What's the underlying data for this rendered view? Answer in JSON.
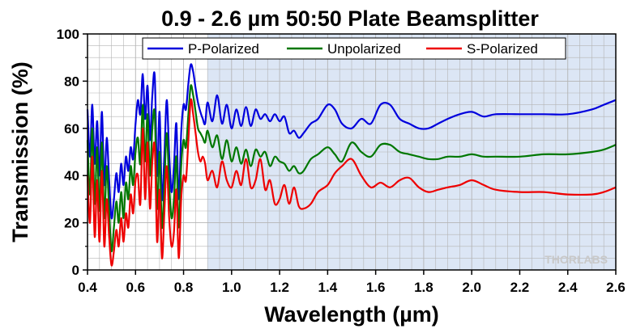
{
  "chart_data": {
    "type": "line",
    "title": "0.9 - 2.6 µm 50:50 Plate Beamsplitter",
    "xlabel": "Wavelength (µm)",
    "ylabel": "Transmission (%)",
    "xlim": [
      0.4,
      2.6
    ],
    "ylim": [
      0,
      100
    ],
    "xticks": [
      0.4,
      0.6,
      0.8,
      1.0,
      1.2,
      1.4,
      1.6,
      1.8,
      2.0,
      2.2,
      2.4,
      2.6
    ],
    "xtick_labels": [
      "0.4",
      "0.6",
      "0.8",
      "1.0",
      "1.2",
      "1.4",
      "1.6",
      "1.8",
      "2.0",
      "2.2",
      "2.4",
      "2.6"
    ],
    "yticks": [
      0,
      20,
      40,
      60,
      80,
      100
    ],
    "ytick_labels": [
      "0",
      "20",
      "40",
      "60",
      "80",
      "100"
    ],
    "grid": true,
    "legend_position": "top-center",
    "shaded_region": {
      "x_from": 0.9,
      "x_to": 2.6,
      "color": "#dce6f5"
    },
    "watermark": "THORLABS",
    "series": [
      {
        "name": "P-Polarized",
        "color": "#0000dd",
        "x": [
          0.4,
          0.41,
          0.42,
          0.43,
          0.44,
          0.45,
          0.46,
          0.47,
          0.48,
          0.49,
          0.5,
          0.51,
          0.52,
          0.53,
          0.54,
          0.55,
          0.56,
          0.57,
          0.58,
          0.59,
          0.6,
          0.61,
          0.62,
          0.63,
          0.64,
          0.65,
          0.66,
          0.67,
          0.68,
          0.69,
          0.7,
          0.71,
          0.72,
          0.73,
          0.74,
          0.75,
          0.76,
          0.77,
          0.78,
          0.79,
          0.8,
          0.81,
          0.82,
          0.83,
          0.84,
          0.85,
          0.86,
          0.87,
          0.88,
          0.89,
          0.9,
          0.92,
          0.94,
          0.96,
          0.98,
          1.0,
          1.02,
          1.04,
          1.06,
          1.08,
          1.1,
          1.12,
          1.14,
          1.16,
          1.18,
          1.2,
          1.22,
          1.24,
          1.26,
          1.28,
          1.3,
          1.33,
          1.36,
          1.4,
          1.43,
          1.46,
          1.5,
          1.54,
          1.58,
          1.62,
          1.66,
          1.7,
          1.74,
          1.78,
          1.82,
          1.86,
          1.9,
          1.95,
          2.0,
          2.05,
          2.1,
          2.2,
          2.3,
          2.4,
          2.5,
          2.55,
          2.6
        ],
        "y": [
          68,
          48,
          70,
          45,
          63,
          40,
          67,
          36,
          56,
          38,
          22,
          30,
          41,
          33,
          45,
          36,
          48,
          42,
          52,
          47,
          62,
          72,
          66,
          83,
          64,
          78,
          55,
          74,
          82,
          40,
          67,
          30,
          48,
          72,
          49,
          33,
          44,
          62,
          30,
          58,
          70,
          68,
          79,
          87,
          84,
          77,
          71,
          67,
          64,
          62,
          71,
          63,
          74,
          62,
          70,
          60,
          68,
          61,
          69,
          61,
          68,
          64,
          66,
          63,
          66,
          63,
          65,
          58,
          59,
          56,
          58,
          62,
          64,
          70,
          68,
          62,
          60,
          64,
          62,
          70,
          70,
          64,
          62,
          60,
          60,
          62,
          64,
          66,
          67,
          65,
          66,
          66,
          66,
          66,
          68,
          70,
          72
        ]
      },
      {
        "name": "Unpolarized",
        "color": "#007700",
        "x": [
          0.4,
          0.41,
          0.42,
          0.43,
          0.44,
          0.45,
          0.46,
          0.47,
          0.48,
          0.49,
          0.5,
          0.51,
          0.52,
          0.53,
          0.54,
          0.55,
          0.56,
          0.57,
          0.58,
          0.59,
          0.6,
          0.61,
          0.62,
          0.63,
          0.64,
          0.65,
          0.66,
          0.67,
          0.68,
          0.69,
          0.7,
          0.71,
          0.72,
          0.73,
          0.74,
          0.75,
          0.76,
          0.77,
          0.78,
          0.79,
          0.8,
          0.81,
          0.82,
          0.83,
          0.84,
          0.85,
          0.86,
          0.87,
          0.88,
          0.89,
          0.9,
          0.92,
          0.94,
          0.96,
          0.98,
          1.0,
          1.02,
          1.04,
          1.06,
          1.08,
          1.1,
          1.12,
          1.14,
          1.16,
          1.18,
          1.2,
          1.22,
          1.24,
          1.26,
          1.28,
          1.3,
          1.33,
          1.36,
          1.4,
          1.43,
          1.46,
          1.5,
          1.54,
          1.58,
          1.62,
          1.66,
          1.7,
          1.74,
          1.78,
          1.82,
          1.86,
          1.9,
          1.95,
          2.0,
          2.05,
          2.1,
          2.2,
          2.3,
          2.4,
          2.5,
          2.55,
          2.6
        ],
        "y": [
          55,
          32,
          60,
          28,
          52,
          25,
          54,
          22,
          44,
          25,
          8,
          18,
          29,
          20,
          33,
          22,
          37,
          30,
          44,
          36,
          50,
          56,
          45,
          70,
          46,
          66,
          40,
          60,
          66,
          26,
          50,
          18,
          36,
          58,
          36,
          22,
          30,
          48,
          18,
          44,
          55,
          52,
          66,
          78,
          74,
          67,
          60,
          58,
          56,
          54,
          59,
          52,
          57,
          47,
          55,
          46,
          52,
          45,
          51,
          44,
          51,
          48,
          50,
          44,
          48,
          46,
          45,
          42,
          44,
          41,
          42,
          47,
          49,
          52,
          49,
          46,
          54,
          50,
          48,
          53,
          53,
          50,
          49,
          48,
          47,
          47,
          48,
          48,
          49,
          48,
          48,
          48,
          49,
          49,
          50,
          51,
          53
        ]
      },
      {
        "name": "S-Polarized",
        "color": "#ee0000",
        "x": [
          0.4,
          0.41,
          0.42,
          0.43,
          0.44,
          0.45,
          0.46,
          0.47,
          0.48,
          0.49,
          0.5,
          0.51,
          0.52,
          0.53,
          0.54,
          0.55,
          0.56,
          0.57,
          0.58,
          0.59,
          0.6,
          0.61,
          0.62,
          0.63,
          0.64,
          0.65,
          0.66,
          0.67,
          0.68,
          0.69,
          0.7,
          0.71,
          0.72,
          0.73,
          0.74,
          0.75,
          0.76,
          0.77,
          0.78,
          0.79,
          0.8,
          0.81,
          0.82,
          0.83,
          0.84,
          0.85,
          0.86,
          0.87,
          0.88,
          0.89,
          0.9,
          0.92,
          0.94,
          0.96,
          0.98,
          1.0,
          1.02,
          1.04,
          1.06,
          1.08,
          1.1,
          1.12,
          1.14,
          1.16,
          1.18,
          1.2,
          1.22,
          1.24,
          1.26,
          1.28,
          1.3,
          1.33,
          1.36,
          1.4,
          1.43,
          1.46,
          1.5,
          1.54,
          1.58,
          1.62,
          1.66,
          1.7,
          1.74,
          1.78,
          1.82,
          1.86,
          1.9,
          1.95,
          2.0,
          2.05,
          2.1,
          2.2,
          2.3,
          2.4,
          2.5,
          2.55,
          2.6
        ],
        "y": [
          40,
          20,
          48,
          14,
          38,
          12,
          42,
          10,
          30,
          14,
          2,
          8,
          17,
          10,
          22,
          12,
          24,
          18,
          32,
          24,
          38,
          40,
          28,
          60,
          30,
          54,
          26,
          46,
          52,
          12,
          34,
          5,
          24,
          44,
          22,
          10,
          16,
          34,
          5,
          30,
          40,
          38,
          55,
          72,
          66,
          58,
          50,
          46,
          48,
          45,
          38,
          42,
          35,
          46,
          38,
          35,
          42,
          36,
          47,
          35,
          38,
          47,
          34,
          38,
          28,
          30,
          36,
          28,
          35,
          27,
          26,
          28,
          33,
          36,
          41,
          44,
          47,
          40,
          35,
          37,
          35,
          38,
          39,
          35,
          33,
          34,
          35,
          36,
          38,
          36,
          34,
          33,
          33,
          32,
          32,
          33,
          35
        ]
      }
    ]
  }
}
